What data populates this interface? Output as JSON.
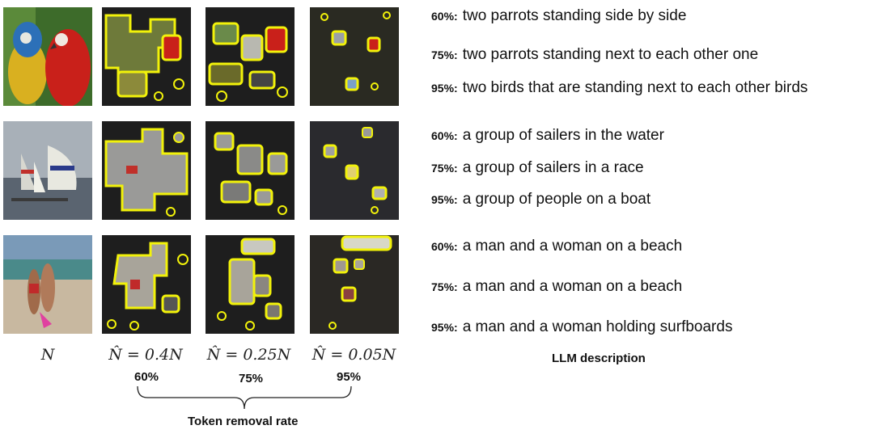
{
  "column_labels": {
    "original": "N",
    "rate_60": "N̂ = 0.4N",
    "rate_75": "N̂ = 0.25N",
    "rate_95": "N̂ = 0.05N"
  },
  "rates": [
    "60%",
    "75%",
    "95%"
  ],
  "brace_label": "Token removal rate",
  "descriptions_label": "LLM description",
  "rows": [
    {
      "image": "parrots",
      "captions": [
        {
          "pct": "60%:",
          "text": "two parrots standing side by side"
        },
        {
          "pct": "75%:",
          "text": "two parrots standing next to each other one"
        },
        {
          "pct": "95%:",
          "text": "two birds that are standing next to each other birds"
        }
      ]
    },
    {
      "image": "sailboats",
      "captions": [
        {
          "pct": "60%:",
          "text": "a group of sailers in the water"
        },
        {
          "pct": "75%:",
          "text": "a group of sailers in a race"
        },
        {
          "pct": "95%:",
          "text": "a group of people on a boat"
        }
      ]
    },
    {
      "image": "beach couple",
      "captions": [
        {
          "pct": "60%:",
          "text": "a man and a woman on a beach"
        },
        {
          "pct": "75%:",
          "text": "a man and a woman on a beach"
        },
        {
          "pct": "95%:",
          "text": "a man and a woman holding surfboards"
        }
      ]
    }
  ],
  "colors": {
    "highlight": "#f2f20a",
    "mask": "#1e1e1e"
  }
}
